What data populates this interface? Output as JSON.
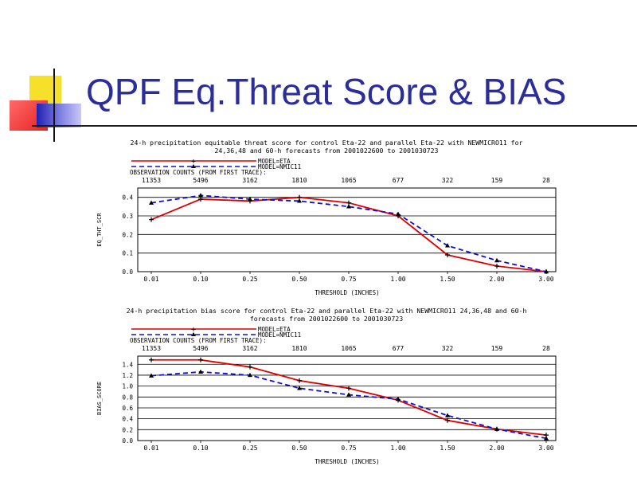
{
  "slide": {
    "title": "QPF Eq.Threat Score & BIAS"
  },
  "colors": {
    "title": "#2b2d9a",
    "eta": "#e00000",
    "nmicro": "#1010d0",
    "yellow": "#f7e02a",
    "red": "#f23b3b",
    "blue": "#2424b8"
  },
  "chart_data": [
    {
      "type": "line",
      "title": "24-h precipitation equitable threat score for control Eta-22 and parallel Eta-22 with NEWMICRO11 for",
      "subtitle": "24,36,48 and 60-h forecasts from 2001022600 to 2001030723",
      "xlabel": "THRESHOLD (INCHES)",
      "ylabel": "EQ_THT_SCR",
      "categories": [
        "0.01",
        "0.10",
        "0.25",
        "0.50",
        "0.75",
        "1.00",
        "1.50",
        "2.00",
        "3.00"
      ],
      "obs_label": "OBSERVATION COUNTS (FROM FIRST TRACE):",
      "obs_counts": [
        "11353",
        "5496",
        "3162",
        "1810",
        "1065",
        "677",
        "322",
        "159",
        "28"
      ],
      "ylim": [
        0,
        0.45
      ],
      "yticks": [
        "0.0",
        "0.1",
        "0.2",
        "0.3",
        "0.4"
      ],
      "grid": true,
      "legend_position": "top-left",
      "series": [
        {
          "name": "MODEL=ETA",
          "values": [
            0.28,
            0.39,
            0.38,
            0.4,
            0.37,
            0.3,
            0.09,
            0.03,
            0.0
          ]
        },
        {
          "name": "MODEL=NMIC11",
          "values": [
            0.37,
            0.41,
            0.39,
            0.38,
            0.35,
            0.31,
            0.14,
            0.06,
            0.0
          ]
        }
      ]
    },
    {
      "type": "line",
      "title": "24-h precipitation bias score for control Eta-22 and parallel Eta-22 with NEWMICRO11 24,36,48 and 60-h",
      "subtitle": "forecasts from 2001022600 to 2001030723",
      "xlabel": "THRESHOLD (INCHES)",
      "ylabel": "BIAS_SCORE",
      "categories": [
        "0.01",
        "0.10",
        "0.25",
        "0.50",
        "0.75",
        "1.00",
        "1.50",
        "2.00",
        "3.00"
      ],
      "obs_label": "OBSERVATION COUNTS (FROM FIRST TRACE):",
      "obs_counts": [
        "11353",
        "5496",
        "3162",
        "1810",
        "1065",
        "677",
        "322",
        "159",
        "28"
      ],
      "ylim": [
        0,
        1.55
      ],
      "yticks": [
        "0.0",
        "0.2",
        "0.4",
        "0.6",
        "0.8",
        "1.0",
        "1.2",
        "1.4"
      ],
      "grid": true,
      "legend_position": "top-left",
      "series": [
        {
          "name": "MODEL=ETA",
          "values": [
            1.48,
            1.48,
            1.35,
            1.1,
            0.96,
            0.74,
            0.37,
            0.21,
            0.1
          ]
        },
        {
          "name": "MODEL=NMIC11",
          "values": [
            1.19,
            1.26,
            1.2,
            0.96,
            0.84,
            0.76,
            0.46,
            0.21,
            0.04
          ]
        }
      ]
    }
  ]
}
